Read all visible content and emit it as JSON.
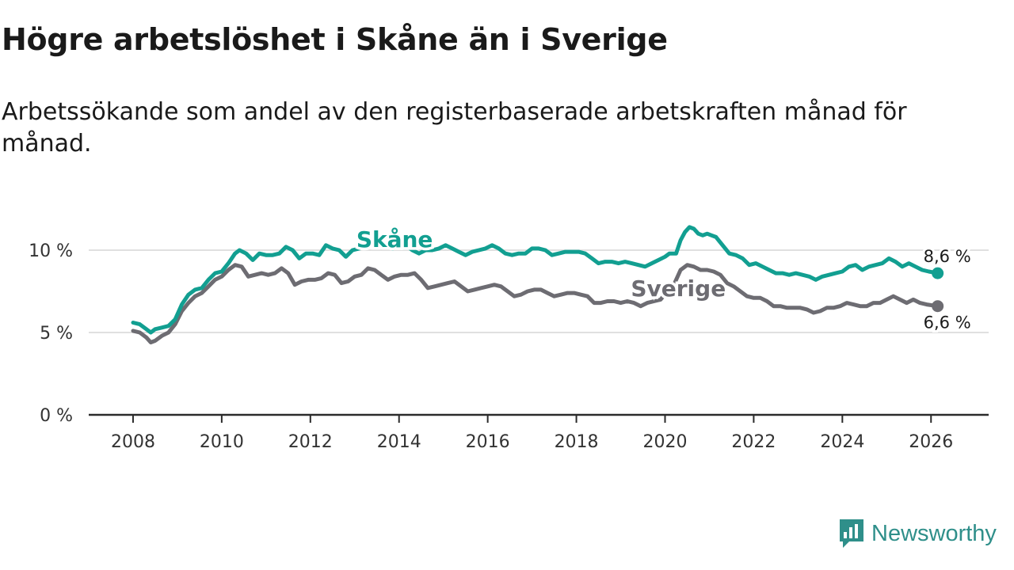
{
  "title": "Högre arbetslöshet i Skåne än i Sverige",
  "subtitle": "Arbetssökande som andel av den registerbaserade arbetskraften månad för månad.",
  "brand": {
    "name": "Newsworthy",
    "icon": "newsworthy-logo-icon",
    "color": "#2f8f8a"
  },
  "colors": {
    "skane": "#129f91",
    "sverige": "#6d6c72",
    "grid": "#d6d6d6",
    "axis": "#2b2b2b"
  },
  "chart_data": {
    "type": "line",
    "title": "Högre arbetslöshet i Skåne än i Sverige",
    "xlabel": "",
    "ylabel": "",
    "xlim": [
      2007.0,
      2027.3
    ],
    "ylim": [
      0,
      10
    ],
    "x_ticks": [
      2008,
      2010,
      2012,
      2014,
      2016,
      2018,
      2020,
      2022,
      2024,
      2026
    ],
    "y_ticks": [
      {
        "value": 0,
        "label": "0 %"
      },
      {
        "value": 5,
        "label": "5 %"
      },
      {
        "value": 10,
        "label": "10 %"
      }
    ],
    "series": [
      {
        "name": "Skåne",
        "color": "#129f91",
        "end_label": "8,6 %",
        "points": [
          [
            2008.0,
            5.6
          ],
          [
            2008.15,
            5.5
          ],
          [
            2008.3,
            5.2
          ],
          [
            2008.4,
            5.0
          ],
          [
            2008.5,
            5.2
          ],
          [
            2008.65,
            5.3
          ],
          [
            2008.8,
            5.4
          ],
          [
            2008.95,
            5.8
          ],
          [
            2009.1,
            6.7
          ],
          [
            2009.25,
            7.3
          ],
          [
            2009.4,
            7.6
          ],
          [
            2009.55,
            7.7
          ],
          [
            2009.7,
            8.2
          ],
          [
            2009.85,
            8.6
          ],
          [
            2010.0,
            8.7
          ],
          [
            2010.15,
            9.2
          ],
          [
            2010.3,
            9.8
          ],
          [
            2010.4,
            10.0
          ],
          [
            2010.55,
            9.8
          ],
          [
            2010.7,
            9.4
          ],
          [
            2010.85,
            9.8
          ],
          [
            2011.0,
            9.7
          ],
          [
            2011.15,
            9.7
          ],
          [
            2011.3,
            9.8
          ],
          [
            2011.45,
            10.2
          ],
          [
            2011.6,
            10.0
          ],
          [
            2011.75,
            9.5
          ],
          [
            2011.9,
            9.8
          ],
          [
            2012.05,
            9.8
          ],
          [
            2012.2,
            9.7
          ],
          [
            2012.35,
            10.3
          ],
          [
            2012.5,
            10.1
          ],
          [
            2012.65,
            10.0
          ],
          [
            2012.8,
            9.6
          ],
          [
            2012.95,
            10.0
          ],
          [
            2013.1,
            10.1
          ],
          [
            2013.25,
            10.2
          ],
          [
            2013.4,
            10.5
          ],
          [
            2013.55,
            10.5
          ],
          [
            2013.7,
            10.3
          ],
          [
            2013.85,
            10.1
          ],
          [
            2014.0,
            10.2
          ],
          [
            2014.15,
            10.3
          ],
          [
            2014.3,
            10.0
          ],
          [
            2014.45,
            9.8
          ],
          [
            2014.6,
            10.0
          ],
          [
            2014.75,
            10.0
          ],
          [
            2014.9,
            10.1
          ],
          [
            2015.05,
            10.3
          ],
          [
            2015.2,
            10.1
          ],
          [
            2015.35,
            9.9
          ],
          [
            2015.5,
            9.7
          ],
          [
            2015.65,
            9.9
          ],
          [
            2015.8,
            10.0
          ],
          [
            2015.95,
            10.1
          ],
          [
            2016.1,
            10.3
          ],
          [
            2016.25,
            10.1
          ],
          [
            2016.4,
            9.8
          ],
          [
            2016.55,
            9.7
          ],
          [
            2016.7,
            9.8
          ],
          [
            2016.85,
            9.8
          ],
          [
            2017.0,
            10.1
          ],
          [
            2017.15,
            10.1
          ],
          [
            2017.3,
            10.0
          ],
          [
            2017.45,
            9.7
          ],
          [
            2017.6,
            9.8
          ],
          [
            2017.75,
            9.9
          ],
          [
            2017.9,
            9.9
          ],
          [
            2018.05,
            9.9
          ],
          [
            2018.2,
            9.8
          ],
          [
            2018.35,
            9.5
          ],
          [
            2018.5,
            9.2
          ],
          [
            2018.65,
            9.3
          ],
          [
            2018.8,
            9.3
          ],
          [
            2018.95,
            9.2
          ],
          [
            2019.1,
            9.3
          ],
          [
            2019.25,
            9.2
          ],
          [
            2019.4,
            9.1
          ],
          [
            2019.55,
            9.0
          ],
          [
            2019.7,
            9.2
          ],
          [
            2019.85,
            9.4
          ],
          [
            2020.0,
            9.6
          ],
          [
            2020.1,
            9.8
          ],
          [
            2020.25,
            9.8
          ],
          [
            2020.35,
            10.6
          ],
          [
            2020.45,
            11.1
          ],
          [
            2020.55,
            11.4
          ],
          [
            2020.65,
            11.3
          ],
          [
            2020.75,
            11.0
          ],
          [
            2020.85,
            10.9
          ],
          [
            2020.95,
            11.0
          ],
          [
            2021.05,
            10.9
          ],
          [
            2021.15,
            10.8
          ],
          [
            2021.3,
            10.3
          ],
          [
            2021.45,
            9.8
          ],
          [
            2021.6,
            9.7
          ],
          [
            2021.75,
            9.5
          ],
          [
            2021.9,
            9.1
          ],
          [
            2022.05,
            9.2
          ],
          [
            2022.2,
            9.0
          ],
          [
            2022.35,
            8.8
          ],
          [
            2022.5,
            8.6
          ],
          [
            2022.65,
            8.6
          ],
          [
            2022.8,
            8.5
          ],
          [
            2022.95,
            8.6
          ],
          [
            2023.1,
            8.5
          ],
          [
            2023.25,
            8.4
          ],
          [
            2023.4,
            8.2
          ],
          [
            2023.55,
            8.4
          ],
          [
            2023.7,
            8.5
          ],
          [
            2023.85,
            8.6
          ],
          [
            2024.0,
            8.7
          ],
          [
            2024.15,
            9.0
          ],
          [
            2024.3,
            9.1
          ],
          [
            2024.45,
            8.8
          ],
          [
            2024.6,
            9.0
          ],
          [
            2024.75,
            9.1
          ],
          [
            2024.9,
            9.2
          ],
          [
            2025.05,
            9.5
          ],
          [
            2025.2,
            9.3
          ],
          [
            2025.35,
            9.0
          ],
          [
            2025.5,
            9.2
          ],
          [
            2025.65,
            9.0
          ],
          [
            2025.8,
            8.8
          ],
          [
            2025.95,
            8.7
          ],
          [
            2026.15,
            8.6
          ]
        ]
      },
      {
        "name": "Sverige",
        "color": "#6d6c72",
        "end_label": "6,6 %",
        "points": [
          [
            2008.0,
            5.1
          ],
          [
            2008.15,
            5.0
          ],
          [
            2008.3,
            4.7
          ],
          [
            2008.4,
            4.4
          ],
          [
            2008.5,
            4.5
          ],
          [
            2008.65,
            4.8
          ],
          [
            2008.8,
            5.0
          ],
          [
            2008.95,
            5.5
          ],
          [
            2009.1,
            6.3
          ],
          [
            2009.25,
            6.8
          ],
          [
            2009.4,
            7.2
          ],
          [
            2009.55,
            7.4
          ],
          [
            2009.7,
            7.8
          ],
          [
            2009.85,
            8.2
          ],
          [
            2010.0,
            8.4
          ],
          [
            2010.15,
            8.8
          ],
          [
            2010.3,
            9.1
          ],
          [
            2010.45,
            9.0
          ],
          [
            2010.6,
            8.4
          ],
          [
            2010.75,
            8.5
          ],
          [
            2010.9,
            8.6
          ],
          [
            2011.05,
            8.5
          ],
          [
            2011.2,
            8.6
          ],
          [
            2011.35,
            8.9
          ],
          [
            2011.5,
            8.6
          ],
          [
            2011.65,
            7.9
          ],
          [
            2011.8,
            8.1
          ],
          [
            2011.95,
            8.2
          ],
          [
            2012.1,
            8.2
          ],
          [
            2012.25,
            8.3
          ],
          [
            2012.4,
            8.6
          ],
          [
            2012.55,
            8.5
          ],
          [
            2012.7,
            8.0
          ],
          [
            2012.85,
            8.1
          ],
          [
            2013.0,
            8.4
          ],
          [
            2013.15,
            8.5
          ],
          [
            2013.3,
            8.9
          ],
          [
            2013.45,
            8.8
          ],
          [
            2013.6,
            8.5
          ],
          [
            2013.75,
            8.2
          ],
          [
            2013.9,
            8.4
          ],
          [
            2014.05,
            8.5
          ],
          [
            2014.2,
            8.5
          ],
          [
            2014.35,
            8.6
          ],
          [
            2014.5,
            8.2
          ],
          [
            2014.65,
            7.7
          ],
          [
            2014.8,
            7.8
          ],
          [
            2014.95,
            7.9
          ],
          [
            2015.1,
            8.0
          ],
          [
            2015.25,
            8.1
          ],
          [
            2015.4,
            7.8
          ],
          [
            2015.55,
            7.5
          ],
          [
            2015.7,
            7.6
          ],
          [
            2015.85,
            7.7
          ],
          [
            2016.0,
            7.8
          ],
          [
            2016.15,
            7.9
          ],
          [
            2016.3,
            7.8
          ],
          [
            2016.45,
            7.5
          ],
          [
            2016.6,
            7.2
          ],
          [
            2016.75,
            7.3
          ],
          [
            2016.9,
            7.5
          ],
          [
            2017.05,
            7.6
          ],
          [
            2017.2,
            7.6
          ],
          [
            2017.35,
            7.4
          ],
          [
            2017.5,
            7.2
          ],
          [
            2017.65,
            7.3
          ],
          [
            2017.8,
            7.4
          ],
          [
            2017.95,
            7.4
          ],
          [
            2018.1,
            7.3
          ],
          [
            2018.25,
            7.2
          ],
          [
            2018.4,
            6.8
          ],
          [
            2018.55,
            6.8
          ],
          [
            2018.7,
            6.9
          ],
          [
            2018.85,
            6.9
          ],
          [
            2019.0,
            6.8
          ],
          [
            2019.15,
            6.9
          ],
          [
            2019.3,
            6.8
          ],
          [
            2019.45,
            6.6
          ],
          [
            2019.6,
            6.8
          ],
          [
            2019.75,
            6.9
          ],
          [
            2019.9,
            7.0
          ],
          [
            2020.05,
            7.5
          ],
          [
            2020.2,
            7.9
          ],
          [
            2020.35,
            8.8
          ],
          [
            2020.5,
            9.1
          ],
          [
            2020.65,
            9.0
          ],
          [
            2020.8,
            8.8
          ],
          [
            2020.95,
            8.8
          ],
          [
            2021.1,
            8.7
          ],
          [
            2021.25,
            8.5
          ],
          [
            2021.4,
            8.0
          ],
          [
            2021.55,
            7.8
          ],
          [
            2021.7,
            7.5
          ],
          [
            2021.85,
            7.2
          ],
          [
            2022.0,
            7.1
          ],
          [
            2022.15,
            7.1
          ],
          [
            2022.3,
            6.9
          ],
          [
            2022.45,
            6.6
          ],
          [
            2022.6,
            6.6
          ],
          [
            2022.75,
            6.5
          ],
          [
            2022.9,
            6.5
          ],
          [
            2023.05,
            6.5
          ],
          [
            2023.2,
            6.4
          ],
          [
            2023.35,
            6.2
          ],
          [
            2023.5,
            6.3
          ],
          [
            2023.65,
            6.5
          ],
          [
            2023.8,
            6.5
          ],
          [
            2023.95,
            6.6
          ],
          [
            2024.1,
            6.8
          ],
          [
            2024.25,
            6.7
          ],
          [
            2024.4,
            6.6
          ],
          [
            2024.55,
            6.6
          ],
          [
            2024.7,
            6.8
          ],
          [
            2024.85,
            6.8
          ],
          [
            2025.0,
            7.0
          ],
          [
            2025.15,
            7.2
          ],
          [
            2025.3,
            7.0
          ],
          [
            2025.45,
            6.8
          ],
          [
            2025.6,
            7.0
          ],
          [
            2025.75,
            6.8
          ],
          [
            2025.9,
            6.7
          ],
          [
            2026.15,
            6.6
          ]
        ]
      }
    ],
    "annotations": [
      {
        "text": "Skåne",
        "series": "Skåne",
        "x": 2013.9,
        "y": 10.2
      },
      {
        "text": "Sverige",
        "series": "Sverige",
        "x": 2020.3,
        "y": 7.2
      }
    ]
  }
}
